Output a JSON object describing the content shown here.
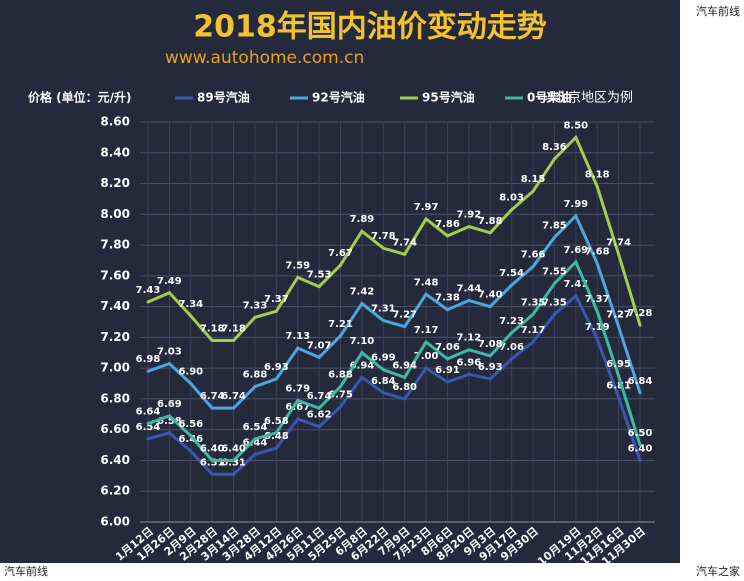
{
  "chart_data": {
    "type": "line",
    "title": "2018年国内油价变动走势",
    "subtitle": "www.autohome.com.cn",
    "ylabel": "价格 (单位：元/升)",
    "note": "以北京地区为例",
    "watermarks": [
      "汽车前线",
      "汽车前线",
      "汽车之家"
    ],
    "categories": [
      "1月12日",
      "1月26日",
      "2月9日",
      "2月28日",
      "3月14日",
      "3月28日",
      "4月12日",
      "4月26日",
      "5月11日",
      "5月25日",
      "6月8日",
      "6月22日",
      "7月9日",
      "7月23日",
      "8月6日",
      "8月20日",
      "9月3日",
      "9月17日",
      "9月30日",
      null,
      "10月19日",
      "11月2日",
      "11月16日",
      "11月30日"
    ],
    "series": [
      {
        "name": "89号汽油",
        "color": "#3b56b0",
        "values": [
          6.54,
          6.58,
          6.46,
          6.31,
          6.31,
          6.44,
          6.48,
          6.67,
          6.62,
          6.75,
          6.94,
          6.84,
          6.8,
          7.0,
          6.91,
          6.96,
          6.93,
          7.06,
          7.17,
          7.35,
          7.47,
          7.19,
          6.81,
          6.4
        ],
        "value_labels": [
          "6.54",
          "6.58",
          "6.46",
          "6.31",
          "6.31",
          "6.44",
          "6.48",
          "6.67",
          "6.62",
          "6.75",
          "6.94",
          "6.84",
          "6.80",
          "7.00",
          "6.91",
          "6.96",
          "6.93",
          "7.06",
          "7.17",
          "7.35",
          "7.47",
          "7.19",
          "6.81",
          "6.40"
        ]
      },
      {
        "name": "92号汽油",
        "color": "#4ea6dc",
        "values": [
          6.98,
          7.03,
          6.9,
          6.74,
          6.74,
          6.88,
          6.93,
          7.13,
          7.07,
          7.21,
          7.42,
          7.31,
          7.27,
          7.48,
          7.38,
          7.44,
          7.4,
          7.54,
          7.66,
          7.85,
          7.99,
          7.68,
          7.27,
          6.84
        ],
        "value_labels": [
          "6.98",
          "7.03",
          "6.90",
          "6.74",
          "6.74",
          "6.88",
          "6.93",
          "7.13",
          "7.07",
          "7.21",
          "7.42",
          "7.31",
          "7.27",
          "7.48",
          "7.38",
          "7.44",
          "7.40",
          "7.54",
          "7.66",
          "7.85",
          "7.99",
          "7.68",
          "7.27",
          "6.84"
        ]
      },
      {
        "name": "95号汽油",
        "color": "#a2cd4e",
        "values": [
          7.43,
          7.49,
          7.34,
          7.18,
          7.18,
          7.33,
          7.37,
          7.59,
          7.53,
          7.67,
          7.89,
          7.78,
          7.74,
          7.97,
          7.86,
          7.92,
          7.88,
          8.03,
          8.15,
          8.36,
          8.5,
          8.18,
          7.74,
          7.28
        ],
        "value_labels": [
          "7.43",
          "7.49",
          "7.34",
          "7.18",
          "7.18",
          "7.33",
          "7.37",
          "7.59",
          "7.53",
          "7.67",
          "7.89",
          "7.78",
          "7.74",
          "7.97",
          "7.86",
          "7.92",
          "7.88",
          "8.03",
          "8.15",
          "8.36",
          "8.50",
          "8.18",
          "7.74",
          "7.28"
        ]
      },
      {
        "name": "0号柴油",
        "color": "#3fb9a2",
        "values": [
          6.64,
          6.69,
          6.56,
          6.4,
          6.4,
          6.54,
          6.58,
          6.79,
          6.74,
          6.88,
          7.1,
          6.99,
          6.94,
          7.17,
          7.06,
          7.12,
          7.08,
          7.23,
          7.35,
          7.55,
          7.69,
          7.37,
          6.95,
          6.5
        ],
        "value_labels": [
          "6.64",
          "6.69",
          "6.56",
          "6.40",
          "6.40",
          "6.54",
          "6.58",
          "6.79",
          "6.74",
          "6.88",
          "7.10",
          "6.99",
          "6.94",
          "7.17",
          "7.06",
          "7.12",
          "7.08",
          "7.23",
          "7.35",
          "7.55",
          "7.69",
          "7.37",
          "6.95",
          "6.50"
        ]
      }
    ],
    "ylim": [
      6.0,
      8.6
    ],
    "yticks": [
      {
        "value": 6.0,
        "label": "6.00"
      },
      {
        "value": 6.2,
        "label": "6.20"
      },
      {
        "value": 6.4,
        "label": "6.40"
      },
      {
        "value": 6.6,
        "label": "6.60"
      },
      {
        "value": 6.8,
        "label": "6.80"
      },
      {
        "value": 7.0,
        "label": "7.00"
      },
      {
        "value": 7.2,
        "label": "7.20"
      },
      {
        "value": 7.4,
        "label": "7.40"
      },
      {
        "value": 7.6,
        "label": "7.60"
      },
      {
        "value": 7.8,
        "label": "7.80"
      },
      {
        "value": 8.0,
        "label": "8.00"
      },
      {
        "value": 8.2,
        "label": "8.20"
      },
      {
        "value": 8.4,
        "label": "8.40"
      },
      {
        "value": 8.6,
        "label": "8.60"
      }
    ],
    "grid": true
  }
}
